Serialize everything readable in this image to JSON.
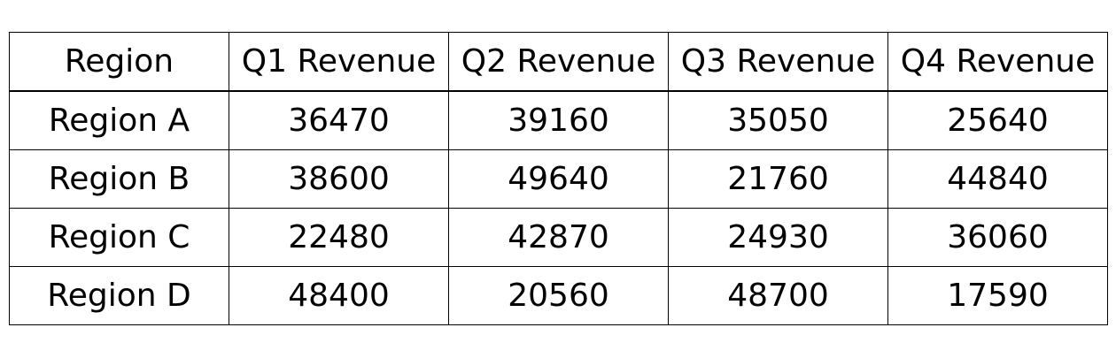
{
  "chart_data": {
    "type": "table",
    "columns": [
      "Region",
      "Q1 Revenue",
      "Q2 Revenue",
      "Q3 Revenue",
      "Q4 Revenue"
    ],
    "rows": [
      [
        "Region A",
        "36470",
        "39160",
        "35050",
        "25640"
      ],
      [
        "Region B",
        "38600",
        "49640",
        "21760",
        "44840"
      ],
      [
        "Region C",
        "22480",
        "42870",
        "24930",
        "36060"
      ],
      [
        "Region D",
        "48400",
        "20560",
        "48700",
        "17590"
      ]
    ]
  }
}
